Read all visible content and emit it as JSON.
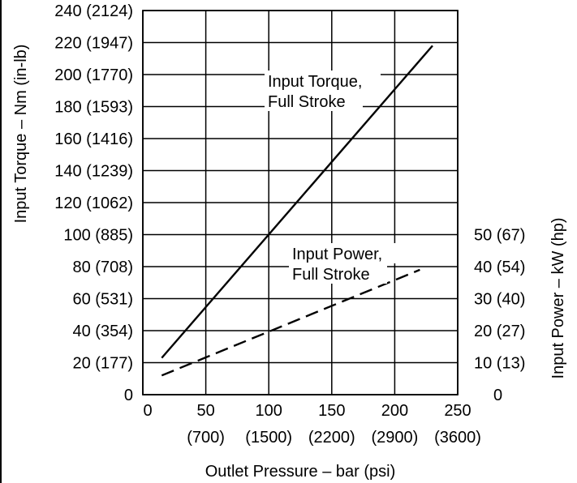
{
  "chart_data": {
    "type": "line",
    "title": "",
    "xlabel": "Outlet Pressure – bar (psi)",
    "ylabel_left": "Input Torque – Nm (in-lb)",
    "ylabel_right": "Input Power – kW (hp)",
    "xlim": [
      0,
      250
    ],
    "ylim_left": [
      0,
      240
    ],
    "ylim_right": [
      0,
      120
    ],
    "grid": true,
    "x_ticks": [
      {
        "value": 0,
        "label": "0",
        "sublabel": ""
      },
      {
        "value": 50,
        "label": "50",
        "sublabel": "(700)"
      },
      {
        "value": 100,
        "label": "100",
        "sublabel": "(1500)"
      },
      {
        "value": 150,
        "label": "150",
        "sublabel": "(2200)"
      },
      {
        "value": 200,
        "label": "200",
        "sublabel": "(2900)"
      },
      {
        "value": 250,
        "label": "250",
        "sublabel": "(3600)"
      }
    ],
    "y_ticks_left": [
      {
        "value": 0,
        "label": "0"
      },
      {
        "value": 20,
        "label": "20 (177)"
      },
      {
        "value": 40,
        "label": "40 (354)"
      },
      {
        "value": 60,
        "label": "60 (531)"
      },
      {
        "value": 80,
        "label": "80 (708)"
      },
      {
        "value": 100,
        "label": "100 (885)"
      },
      {
        "value": 120,
        "label": "120 (1062)"
      },
      {
        "value": 140,
        "label": "140 (1239)"
      },
      {
        "value": 160,
        "label": "160 (1416)"
      },
      {
        "value": 180,
        "label": "180 (1593)"
      },
      {
        "value": 200,
        "label": "200 (1770)"
      },
      {
        "value": 220,
        "label": "220 (1947)"
      },
      {
        "value": 240,
        "label": "240 (2124)"
      }
    ],
    "y_ticks_right": [
      {
        "value": 0,
        "label": "0"
      },
      {
        "value": 10,
        "label": "10 (13)"
      },
      {
        "value": 20,
        "label": "20 (27)"
      },
      {
        "value": 30,
        "label": "30 (40)"
      },
      {
        "value": 40,
        "label": "40 (54)"
      },
      {
        "value": 50,
        "label": "50 (67)"
      }
    ],
    "series": [
      {
        "name": "Input Torque, Full Stroke",
        "axis": "left",
        "style": "solid",
        "x": [
          15,
          230
        ],
        "y": [
          23,
          218
        ]
      },
      {
        "name": "Input Power, Full Stroke",
        "axis": "right",
        "style": "dashed",
        "x": [
          15,
          220
        ],
        "y": [
          6,
          39
        ]
      }
    ],
    "annotations": [
      {
        "series": "Input Torque, Full Stroke",
        "lines": [
          "Input Torque,",
          "Full Stroke"
        ]
      },
      {
        "series": "Input Power, Full Stroke",
        "lines": [
          "Input Power,",
          "Full Stroke"
        ]
      }
    ]
  },
  "colors": {
    "line": "#000000",
    "grid": "#000000",
    "background": "#ffffff"
  }
}
